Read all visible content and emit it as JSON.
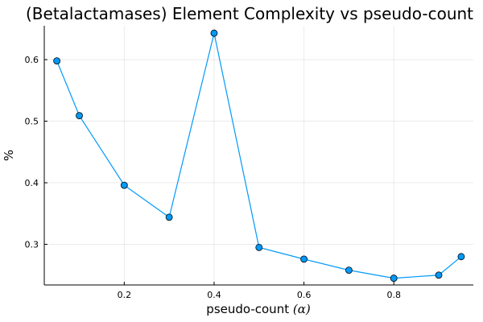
{
  "chart_data": {
    "type": "line",
    "title": "(Betalactamases) Element Complexity vs pseudo-count",
    "xlabel": "pseudo-count ",
    "xlabel_symbol": "(α)",
    "ylabel": "%",
    "xlim": [
      0.022,
      0.977
    ],
    "ylim": [
      0.234,
      0.655
    ],
    "xticks": [
      0.2,
      0.4,
      0.6,
      0.8
    ],
    "xtick_labels": [
      "0.2",
      "0.4",
      "0.6",
      "0.8"
    ],
    "yticks": [
      0.3,
      0.4,
      0.5,
      0.6
    ],
    "ytick_labels": [
      "0.3",
      "0.4",
      "0.5",
      "0.6"
    ],
    "grid": true,
    "color": "#009AFA",
    "series": [
      {
        "x": [
          0.05,
          0.1,
          0.2,
          0.3,
          0.4,
          0.5,
          0.6,
          0.7,
          0.8,
          0.9,
          0.95
        ],
        "values": [
          0.598,
          0.509,
          0.396,
          0.344,
          0.643,
          0.295,
          0.276,
          0.258,
          0.245,
          0.25,
          0.28
        ]
      }
    ]
  }
}
